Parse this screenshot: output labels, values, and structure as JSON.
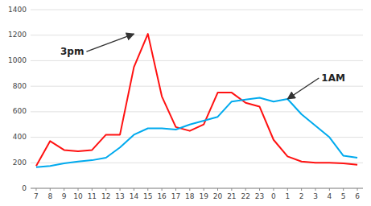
{
  "chart_data": {
    "type": "line",
    "categories": [
      "7",
      "8",
      "9",
      "10",
      "11",
      "12",
      "13",
      "14",
      "15",
      "16",
      "17",
      "18",
      "19",
      "20",
      "21",
      "22",
      "23",
      "0",
      "1",
      "2",
      "3",
      "4",
      "5",
      "6"
    ],
    "series": [
      {
        "color": "#ff1111",
        "values": [
          175,
          370,
          300,
          290,
          300,
          420,
          420,
          950,
          1210,
          720,
          480,
          450,
          500,
          750,
          750,
          670,
          640,
          380,
          250,
          210,
          200,
          200,
          195,
          185
        ]
      },
      {
        "color": "#00aaee",
        "values": [
          165,
          175,
          195,
          210,
          220,
          240,
          320,
          420,
          470,
          470,
          460,
          500,
          530,
          560,
          680,
          695,
          710,
          680,
          700,
          580,
          490,
          400,
          255,
          240
        ]
      }
    ],
    "ylim": [
      0,
      1400
    ],
    "yticks": [
      0,
      200,
      400,
      600,
      800,
      1000,
      1200,
      1400
    ],
    "grid": true,
    "annotations": [
      {
        "text": "3pm",
        "category": "14",
        "value": 1210
      },
      {
        "text": "1AM",
        "category": "1",
        "value": 700
      }
    ]
  }
}
